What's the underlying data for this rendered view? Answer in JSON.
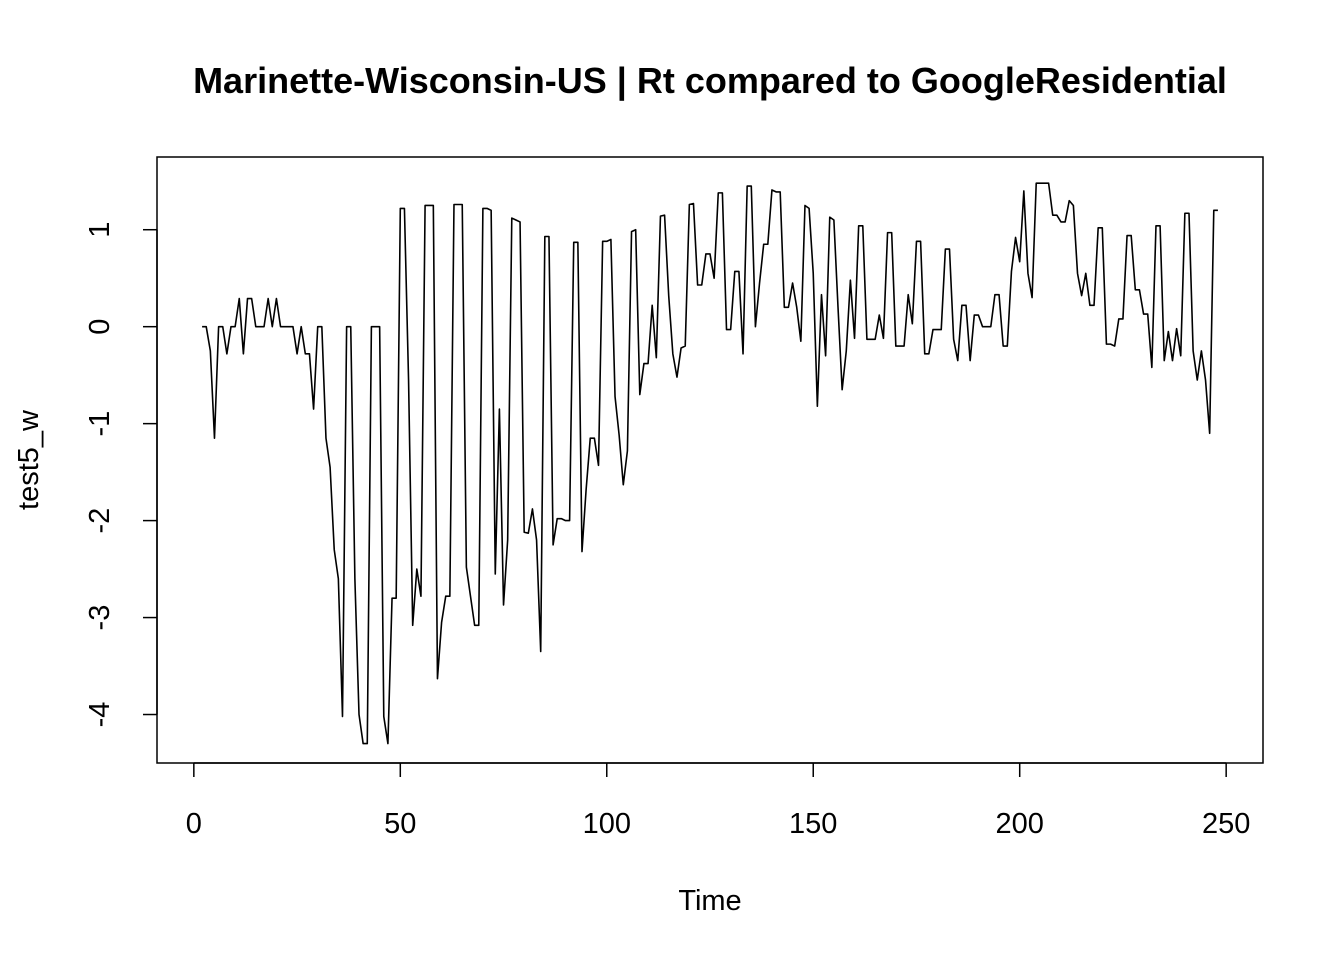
{
  "chart_data": {
    "type": "line",
    "title": "Marinette-Wisconsin-US | Rt compared to GoogleResidential",
    "xlabel": "Time",
    "ylabel": "test5_w",
    "xlim": [
      -8.92,
      258.92
    ],
    "ylim": [
      -4.5,
      1.75
    ],
    "xticks": [
      0,
      50,
      100,
      150,
      200,
      250
    ],
    "yticks": [
      -4,
      -3,
      -2,
      -1,
      0,
      1
    ],
    "grid": false,
    "line_color": "#000000",
    "series": [
      {
        "x": [
          2,
          3,
          4,
          5,
          6,
          7,
          8,
          9,
          10,
          11,
          12,
          13,
          14,
          15,
          16,
          17,
          18,
          19,
          20,
          21,
          22,
          23,
          24,
          25,
          26,
          27,
          28,
          29,
          30,
          31,
          32,
          33,
          34,
          35,
          36,
          37,
          38,
          39,
          40,
          41,
          42,
          43,
          44,
          45,
          46,
          47,
          48,
          49,
          50,
          51,
          52,
          53,
          54,
          55,
          56,
          57,
          58,
          59,
          60,
          61,
          62,
          63,
          64,
          65,
          66,
          67,
          68,
          69,
          70,
          71,
          72,
          73,
          74,
          75,
          76,
          77,
          78,
          79,
          80,
          81,
          82,
          83,
          84,
          85,
          86,
          87,
          88,
          89,
          90,
          91,
          92,
          93,
          94,
          95,
          96,
          97,
          98,
          99,
          100,
          101,
          102,
          103,
          104,
          105,
          106,
          107,
          108,
          109,
          110,
          111,
          112,
          113,
          114,
          115,
          116,
          117,
          118,
          119,
          120,
          121,
          122,
          123,
          124,
          125,
          126,
          127,
          128,
          129,
          130,
          131,
          132,
          133,
          134,
          135,
          136,
          137,
          138,
          139,
          140,
          141,
          142,
          143,
          144,
          145,
          146,
          147,
          148,
          149,
          150,
          151,
          152,
          153,
          154,
          155,
          156,
          157,
          158,
          159,
          160,
          161,
          162,
          163,
          164,
          165,
          166,
          167,
          168,
          169,
          170,
          171,
          172,
          173,
          174,
          175,
          176,
          177,
          178,
          179,
          180,
          181,
          182,
          183,
          184,
          185,
          186,
          187,
          188,
          189,
          190,
          191,
          192,
          193,
          194,
          195,
          196,
          197,
          198,
          199,
          200,
          201,
          202,
          203,
          204,
          205,
          206,
          207,
          208,
          209,
          210,
          211,
          212,
          213,
          214,
          215,
          216,
          217,
          218,
          219,
          220,
          221,
          222,
          223,
          224,
          225,
          226,
          227,
          228,
          229,
          230,
          231,
          232,
          233,
          234,
          235,
          236,
          237,
          238,
          239,
          240,
          241,
          242,
          243,
          244,
          245,
          246,
          247,
          248
        ],
        "values": [
          0,
          0,
          -0.25,
          -1.15,
          0,
          0,
          -0.28,
          0,
          0,
          0.29,
          -0.28,
          0.29,
          0.29,
          0,
          0,
          0,
          0.29,
          0,
          0.29,
          0,
          0,
          0,
          0,
          -0.28,
          0,
          -0.28,
          -0.28,
          -0.85,
          0,
          0,
          -1.15,
          -1.45,
          -2.3,
          -2.6,
          -4.02,
          0,
          0,
          -2.6,
          -4.0,
          -4.3,
          -4.3,
          0,
          0,
          0,
          -4.02,
          -4.3,
          -2.8,
          -2.8,
          1.22,
          1.22,
          -0.55,
          -3.08,
          -2.5,
          -2.78,
          1.25,
          1.25,
          1.25,
          -3.63,
          -3.05,
          -2.78,
          -2.78,
          1.26,
          1.26,
          1.26,
          -2.48,
          -2.78,
          -3.08,
          -3.08,
          1.22,
          1.22,
          1.2,
          -2.55,
          -0.85,
          -2.87,
          -2.2,
          1.12,
          1.1,
          1.08,
          -2.12,
          -2.13,
          -1.88,
          -2.2,
          -3.35,
          0.93,
          0.93,
          -2.25,
          -1.98,
          -1.98,
          -2.0,
          -2.0,
          0.87,
          0.87,
          -2.32,
          -1.68,
          -1.15,
          -1.15,
          -1.43,
          0.88,
          0.88,
          0.9,
          -0.72,
          -1.12,
          -1.63,
          -1.28,
          0.98,
          1.0,
          -0.7,
          -0.38,
          -0.38,
          0.22,
          -0.32,
          1.14,
          1.15,
          0.32,
          -0.28,
          -0.52,
          -0.22,
          -0.2,
          1.26,
          1.27,
          0.43,
          0.43,
          0.75,
          0.75,
          0.5,
          1.38,
          1.38,
          -0.03,
          -0.03,
          0.57,
          0.57,
          -0.28,
          1.45,
          1.45,
          0,
          0.45,
          0.85,
          0.85,
          1.41,
          1.39,
          1.39,
          0.2,
          0.2,
          0.45,
          0.2,
          -0.15,
          1.25,
          1.22,
          0.55,
          -0.82,
          0.33,
          -0.3,
          1.13,
          1.1,
          0.2,
          -0.65,
          -0.25,
          0.48,
          -0.12,
          1.04,
          1.04,
          -0.13,
          -0.13,
          -0.13,
          0.12,
          -0.12,
          0.97,
          0.97,
          -0.2,
          -0.2,
          -0.2,
          0.33,
          0.03,
          0.88,
          0.88,
          -0.28,
          -0.28,
          -0.03,
          -0.03,
          -0.03,
          0.8,
          0.8,
          -0.13,
          -0.35,
          0.22,
          0.22,
          -0.35,
          0.12,
          0.12,
          0.0,
          0.0,
          0.0,
          0.33,
          0.33,
          -0.2,
          -0.2,
          0.57,
          0.92,
          0.67,
          1.4,
          0.55,
          0.3,
          1.48,
          1.48,
          1.48,
          1.48,
          1.15,
          1.15,
          1.08,
          1.08,
          1.3,
          1.25,
          0.55,
          0.32,
          0.55,
          0.22,
          0.22,
          1.02,
          1.02,
          -0.18,
          -0.18,
          -0.2,
          0.08,
          0.08,
          0.94,
          0.94,
          0.38,
          0.38,
          0.13,
          0.13,
          -0.42,
          1.04,
          1.04,
          -0.35,
          -0.05,
          -0.35,
          -0.02,
          -0.3,
          1.17,
          1.17,
          -0.25,
          -0.55,
          -0.25,
          -0.55,
          -1.1,
          1.2,
          1.2
        ]
      }
    ]
  }
}
